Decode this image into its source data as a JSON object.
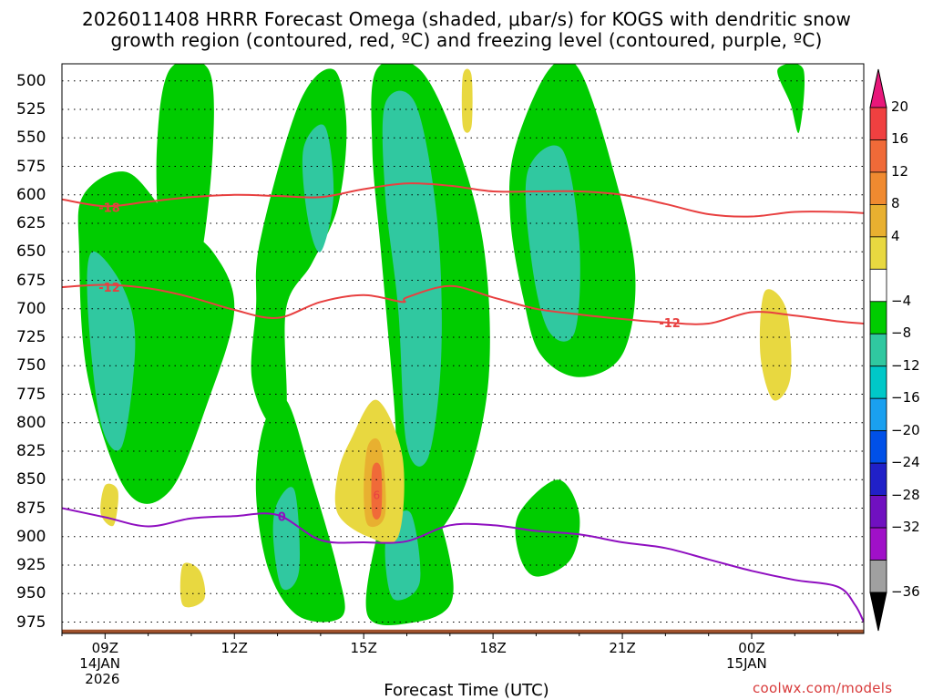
{
  "title": {
    "line1": "2026011408 HRRR Forecast Omega (shaded, μbar/s) for KOGS with dendritic snow",
    "line2": "growth region (contoured, red, ºC) and freezing level (contoured, purple, ºC)"
  },
  "x_axis": {
    "title": "Forecast Time (UTC)",
    "ticks": [
      "09Z",
      "12Z",
      "15Z",
      "18Z",
      "21Z",
      "00Z"
    ],
    "sub_labels": {
      "09Z": "14JAN",
      "00Z": "15JAN"
    },
    "year_label": "2026"
  },
  "credit": "coolwx.com/models",
  "colorbar": {
    "labels": [
      "20",
      "16",
      "12",
      "8",
      "4",
      "−4",
      "−8",
      "−12",
      "−16",
      "−20",
      "−24",
      "−28",
      "−32",
      "−36"
    ],
    "colors": [
      "#e8177a",
      "#f04040",
      "#f06a38",
      "#f08a30",
      "#e8b030",
      "#e8d840",
      "#ffffff",
      "#00cc00",
      "#30c8a0",
      "#00c8c8",
      "#1aa0f0",
      "#0050e8",
      "#2020c8",
      "#7010c0",
      "#a010c8",
      "#a0a0a0",
      "#000000"
    ]
  },
  "chart_data": {
    "type": "time-height contour",
    "x_unit": "forecast hour (UTC)",
    "x_range": [
      8,
      26.6
    ],
    "y_unit": "pressure (hPa)",
    "y_levels": [
      500,
      525,
      550,
      575,
      600,
      625,
      650,
      675,
      700,
      725,
      750,
      775,
      800,
      825,
      850,
      875,
      900,
      925,
      950,
      975
    ],
    "y_range": [
      485,
      985
    ],
    "omega_regions": [
      {
        "level": -4,
        "color": "#00cc00",
        "shape": [
          [
            8.5,
            600
          ],
          [
            9.5,
            580
          ],
          [
            10.5,
            620
          ],
          [
            11.5,
            650
          ],
          [
            12,
            700
          ],
          [
            11.4,
            780
          ],
          [
            10.5,
            860
          ],
          [
            9.5,
            860
          ],
          [
            8.6,
            760
          ],
          [
            8.4,
            650
          ]
        ]
      },
      {
        "level": -4,
        "color": "#00cc00",
        "shape": [
          [
            10.5,
            490
          ],
          [
            11.4,
            490
          ],
          [
            11.5,
            560
          ],
          [
            11.2,
            660
          ],
          [
            10.7,
            700
          ],
          [
            10.3,
            650
          ],
          [
            10.2,
            560
          ]
        ]
      },
      {
        "level": -4,
        "color": "#00cc00",
        "shape": [
          [
            12.7,
            800
          ],
          [
            13.2,
            780
          ],
          [
            13.8,
            850
          ],
          [
            14.4,
            930
          ],
          [
            14.5,
            970
          ],
          [
            13.5,
            970
          ],
          [
            12.8,
            930
          ],
          [
            12.5,
            860
          ]
        ]
      },
      {
        "level": -4,
        "color": "#00cc00",
        "shape": [
          [
            12.5,
            700
          ],
          [
            12.6,
            640
          ],
          [
            13.5,
            520
          ],
          [
            14.3,
            490
          ],
          [
            14.6,
            540
          ],
          [
            14.4,
            610
          ],
          [
            13.8,
            660
          ],
          [
            13.2,
            700
          ],
          [
            13.2,
            790
          ],
          [
            12.8,
            800
          ],
          [
            12.4,
            760
          ]
        ]
      },
      {
        "level": -4,
        "color": "#00cc00",
        "shape": [
          [
            15.3,
            490
          ],
          [
            16.3,
            490
          ],
          [
            17.2,
            560
          ],
          [
            17.8,
            650
          ],
          [
            17.9,
            760
          ],
          [
            17.4,
            850
          ],
          [
            16.6,
            900
          ],
          [
            15.9,
            880
          ],
          [
            15.7,
            780
          ],
          [
            15.4,
            650
          ],
          [
            15.2,
            560
          ]
        ]
      },
      {
        "level": -4,
        "color": "#00cc00",
        "shape": [
          [
            15.8,
            840
          ],
          [
            16.5,
            860
          ],
          [
            17,
            920
          ],
          [
            17,
            960
          ],
          [
            16.2,
            975
          ],
          [
            15.1,
            970
          ],
          [
            15.3,
            900
          ]
        ]
      },
      {
        "level": -4,
        "color": "#00cc00",
        "shape": [
          [
            18.5,
            560
          ],
          [
            19.3,
            490
          ],
          [
            20,
            490
          ],
          [
            20.8,
            580
          ],
          [
            21.3,
            670
          ],
          [
            21,
            740
          ],
          [
            20,
            760
          ],
          [
            19.1,
            740
          ],
          [
            18.7,
            690
          ],
          [
            18.4,
            620
          ]
        ]
      },
      {
        "level": -4,
        "color": "#00cc00",
        "shape": [
          [
            18.6,
            880
          ],
          [
            19.5,
            850
          ],
          [
            20,
            880
          ],
          [
            19.8,
            920
          ],
          [
            19,
            935
          ],
          [
            18.6,
            915
          ]
        ]
      },
      {
        "level": -4,
        "color": "#00cc00",
        "shape": [
          [
            24.6,
            490
          ],
          [
            25.2,
            490
          ],
          [
            25.1,
            545
          ],
          [
            24.9,
            520
          ]
        ]
      },
      {
        "level": -8,
        "color": "#30c8a0",
        "shape": [
          [
            8.7,
            650
          ],
          [
            9.4,
            680
          ],
          [
            9.7,
            730
          ],
          [
            9.4,
            820
          ],
          [
            8.9,
            800
          ],
          [
            8.6,
            700
          ]
        ]
      },
      {
        "level": -8,
        "color": "#30c8a0",
        "shape": [
          [
            15.5,
            520
          ],
          [
            16.2,
            520
          ],
          [
            16.7,
            620
          ],
          [
            16.8,
            740
          ],
          [
            16.5,
            830
          ],
          [
            16,
            820
          ],
          [
            15.8,
            700
          ],
          [
            15.5,
            600
          ]
        ]
      },
      {
        "level": -8,
        "color": "#30c8a0",
        "shape": [
          [
            18.8,
            580
          ],
          [
            19.6,
            560
          ],
          [
            20,
            640
          ],
          [
            19.9,
            720
          ],
          [
            19.3,
            720
          ],
          [
            18.9,
            660
          ]
        ]
      },
      {
        "level": -8,
        "color": "#30c8a0",
        "shape": [
          [
            13.6,
            560
          ],
          [
            14.1,
            540
          ],
          [
            14.3,
            600
          ],
          [
            14,
            650
          ],
          [
            13.7,
            620
          ]
        ]
      },
      {
        "level": -8,
        "color": "#30c8a0",
        "shape": [
          [
            15.6,
            890
          ],
          [
            16.1,
            880
          ],
          [
            16.3,
            940
          ],
          [
            15.7,
            955
          ],
          [
            15.5,
            920
          ]
        ]
      },
      {
        "level": -8,
        "color": "#30c8a0",
        "shape": [
          [
            13,
            870
          ],
          [
            13.4,
            860
          ],
          [
            13.5,
            930
          ],
          [
            13.1,
            945
          ],
          [
            12.9,
            900
          ]
        ]
      },
      {
        "level": 4,
        "color": "#e8d840",
        "shape": [
          [
            14.7,
            815
          ],
          [
            15.3,
            780
          ],
          [
            15.9,
            830
          ],
          [
            15.8,
            900
          ],
          [
            15.1,
            900
          ],
          [
            14.4,
            880
          ],
          [
            14.4,
            845
          ]
        ]
      },
      {
        "level": 4,
        "color": "#e8d840",
        "shape": [
          [
            9.0,
            855
          ],
          [
            9.3,
            860
          ],
          [
            9.2,
            890
          ],
          [
            8.9,
            880
          ]
        ]
      },
      {
        "level": 4,
        "color": "#e8d840",
        "shape": [
          [
            10.8,
            925
          ],
          [
            11.2,
            930
          ],
          [
            11.3,
            955
          ],
          [
            10.8,
            960
          ]
        ]
      },
      {
        "level": 4,
        "color": "#e8d840",
        "shape": [
          [
            24.3,
            685
          ],
          [
            24.8,
            700
          ],
          [
            24.9,
            760
          ],
          [
            24.5,
            780
          ],
          [
            24.2,
            740
          ]
        ]
      },
      {
        "level": 4,
        "color": "#e8d840",
        "shape": [
          [
            17.3,
            495
          ],
          [
            17.5,
            495
          ],
          [
            17.5,
            540
          ],
          [
            17.3,
            540
          ]
        ]
      },
      {
        "level": 8,
        "color": "#e8b030",
        "shape": [
          [
            15.1,
            820
          ],
          [
            15.4,
            820
          ],
          [
            15.5,
            880
          ],
          [
            15.1,
            890
          ],
          [
            15.0,
            860
          ]
        ]
      },
      {
        "level": 12,
        "color": "#f06a38",
        "shape": [
          [
            15.2,
            840
          ],
          [
            15.4,
            840
          ],
          [
            15.4,
            880
          ],
          [
            15.2,
            880
          ]
        ]
      }
    ],
    "dgz_contours": [
      {
        "label": "-18",
        "color": "#e84040",
        "x": [
          8,
          9,
          10,
          11,
          12,
          13,
          14,
          15,
          16,
          17,
          18,
          19,
          20,
          21,
          22,
          23,
          24,
          25,
          26,
          26.6
        ],
        "p": [
          604,
          610,
          606,
          602,
          600,
          601,
          602,
          595,
          590,
          592,
          597,
          597,
          597,
          600,
          608,
          617,
          619,
          615,
          615,
          616
        ]
      },
      {
        "label": "-12",
        "color": "#e84040",
        "x": [
          8,
          9,
          10,
          11,
          12,
          13,
          14,
          15,
          15.9,
          16,
          17,
          18,
          19,
          20,
          21,
          22,
          23,
          24,
          25,
          26,
          26.6
        ],
        "p": [
          681,
          679,
          682,
          690,
          701,
          708,
          694,
          688,
          694,
          690,
          680,
          690,
          700,
          705,
          709,
          712,
          713,
          703,
          706,
          711,
          713
        ]
      }
    ],
    "freezing_level": {
      "label": "0",
      "color": "#8f0fc0",
      "x": [
        8,
        9,
        10,
        11,
        12,
        13,
        14,
        15,
        16,
        17,
        18,
        19,
        20,
        21,
        22,
        23,
        24,
        25,
        26,
        26.4,
        26.6
      ],
      "p": [
        875,
        883,
        891,
        884,
        882,
        881,
        903,
        905,
        904,
        890,
        890,
        895,
        898,
        905,
        910,
        920,
        930,
        938,
        944,
        960,
        975
      ]
    },
    "terrain": {
      "color": "#a0522d",
      "surface_pressure": 980
    }
  }
}
